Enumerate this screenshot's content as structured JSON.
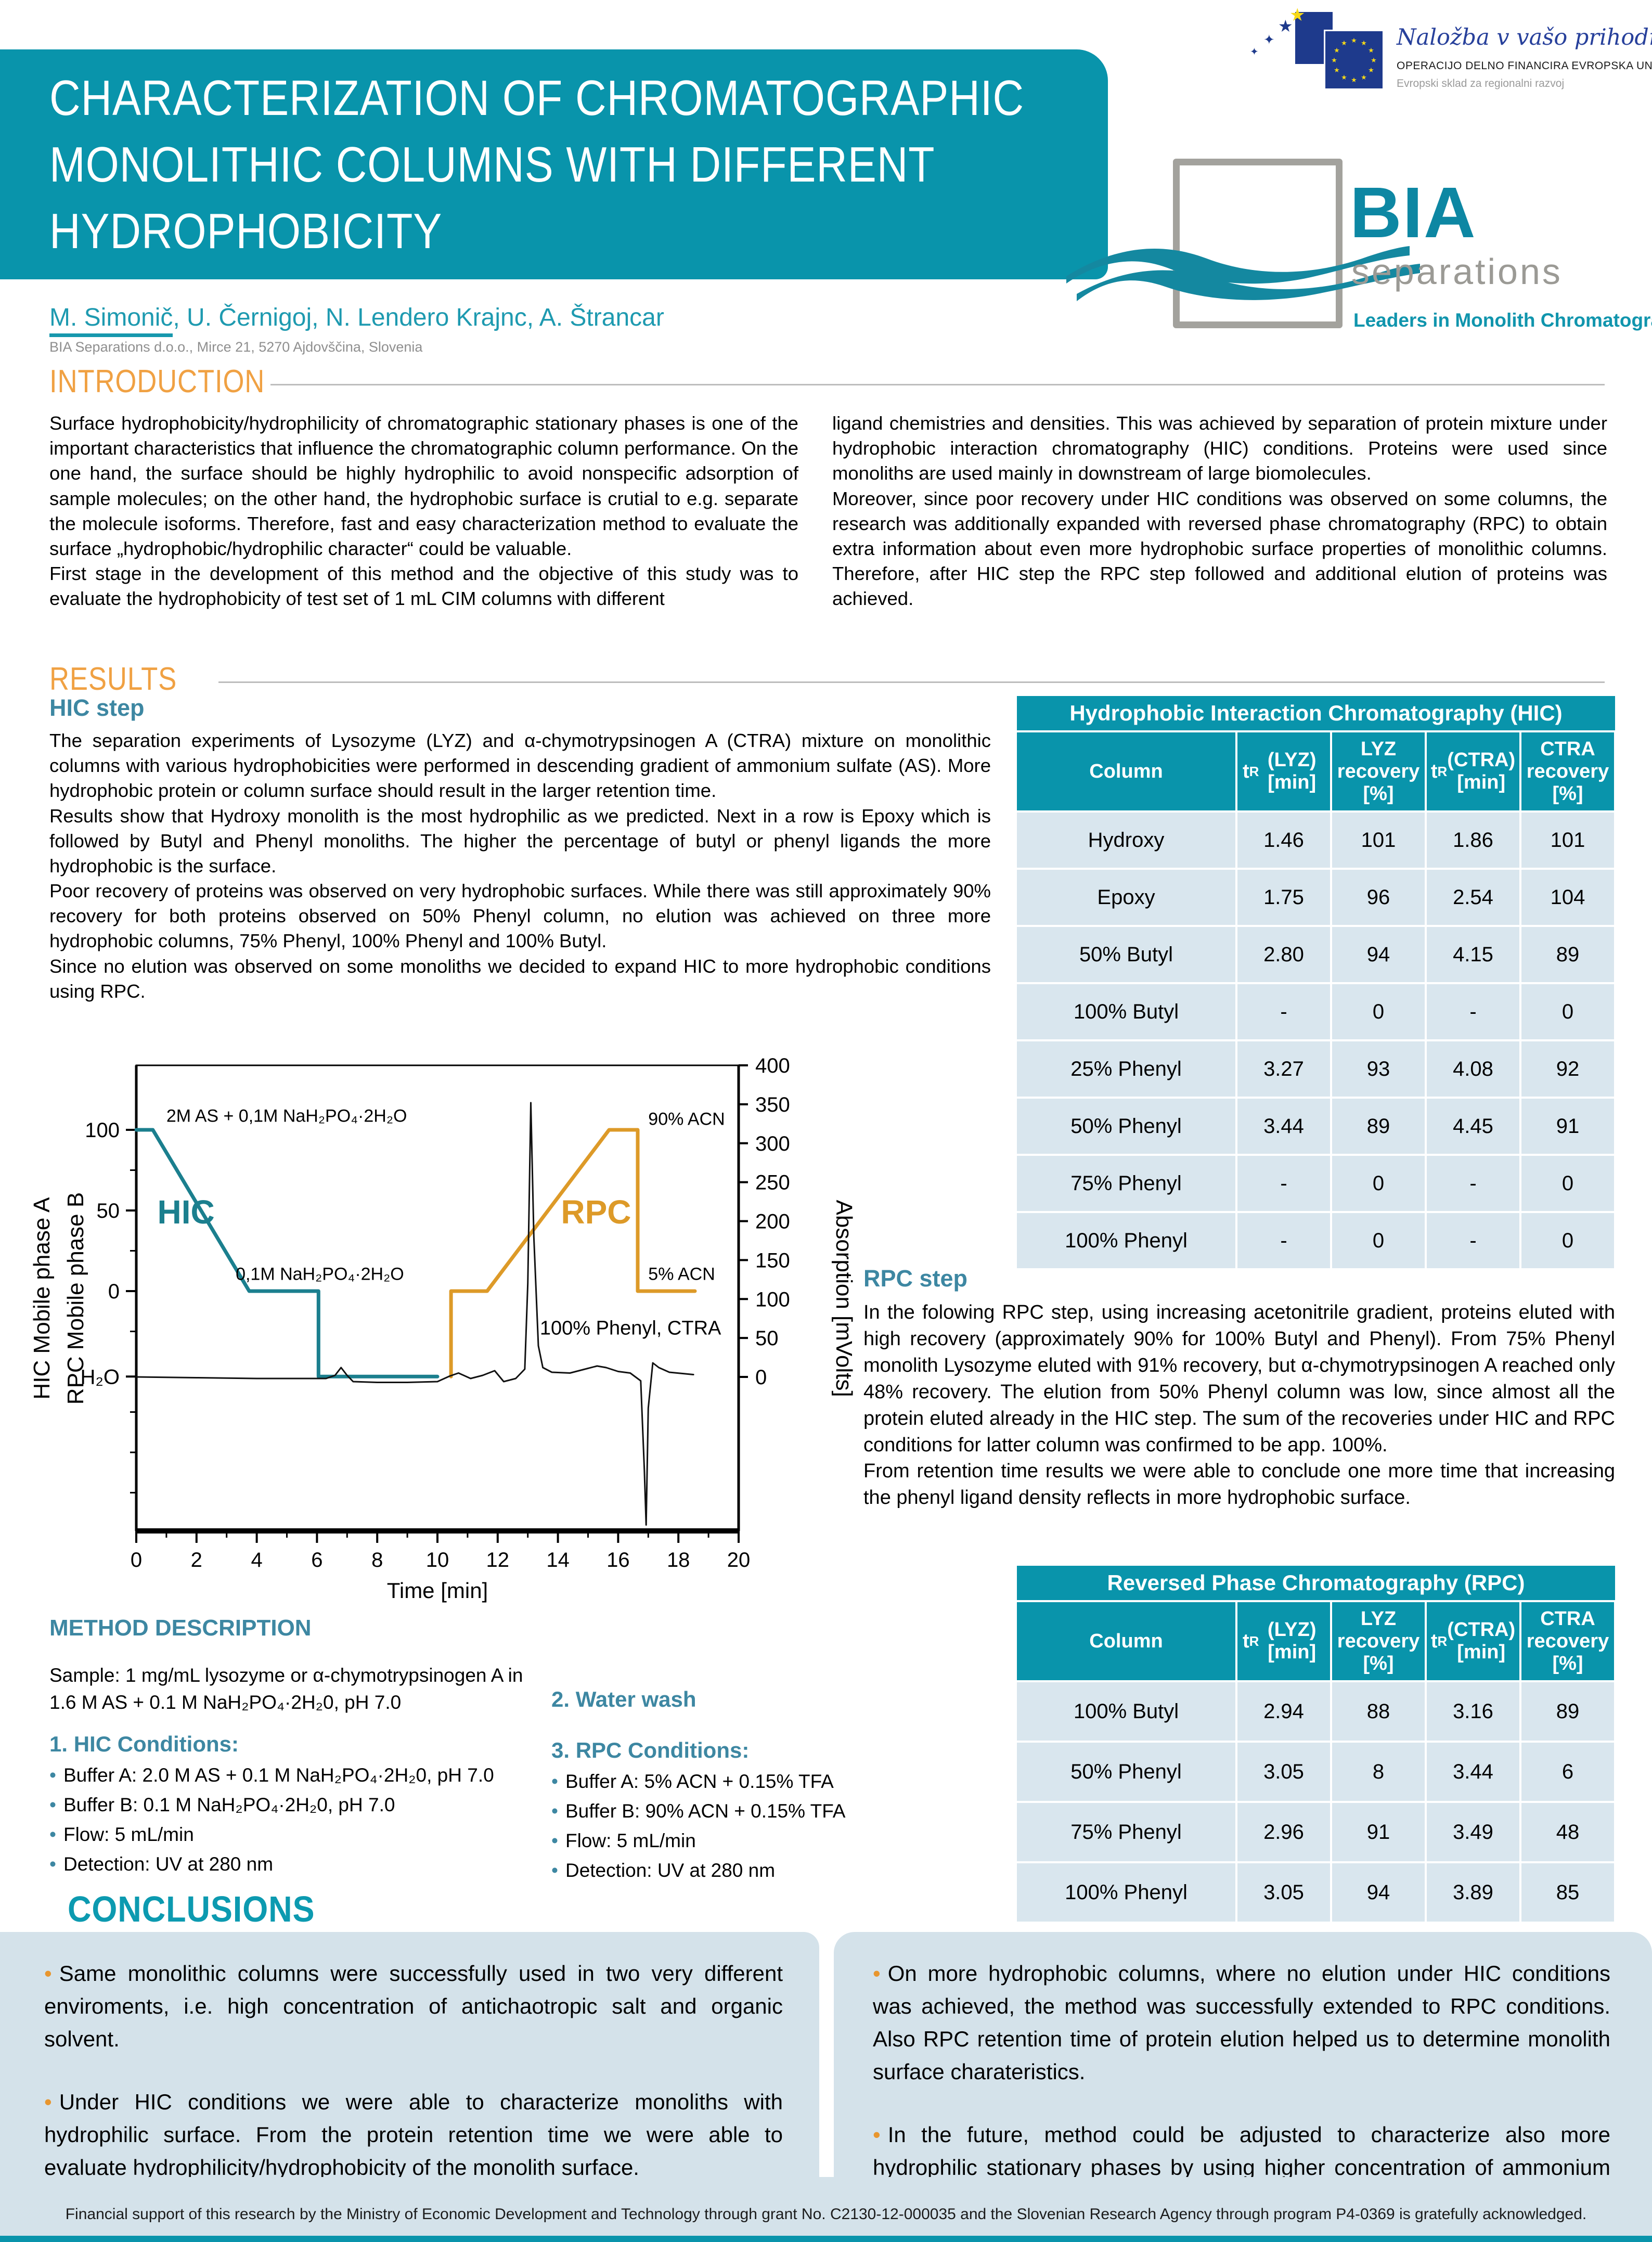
{
  "header": {
    "title_lines": [
      "CHARACTERIZATION OF CHROMATOGRAPHIC",
      "MONOLITHIC COLUMNS WITH DIFFERENT",
      "HYDROPHOBICITY"
    ],
    "author_first": "M. Simonič",
    "author_rest": ", U. Černigoj, N. Lendero Krajnc, A. Štrancar",
    "affiliation": "BIA Separations d.o.o., Mirce 21, 5270 Ajdovščina, Slovenia"
  },
  "logos": {
    "eu": {
      "line1": "Naložba v vašo prihodnost",
      "line2": "OPERACIJO DELNO FINANCIRA EVROPSKA UNIJA",
      "line3": "Evropski sklad za regionalni razvoj"
    },
    "bia": {
      "name": "BIA",
      "sub": "separations",
      "tagline": "Leaders in Monolith Chromatography"
    }
  },
  "intro": {
    "heading": "INTRODUCTION",
    "col1": [
      "Surface hydrophobicity/hydrophilicity of chromatographic stationary phases is one of the important characteristics that influence the chromatographic column performance. On the one hand, the surface should be highly hydrophilic to avoid nonspecific adsorption of sample molecules;  on the other hand, the hydrophobic surface is crutial to e.g. separate the molecule isoforms. Therefore, fast and easy characterization method to evaluate the surface „hydrophobic/hydrophilic character“ could be valuable.",
      "First stage in the development of this method and the objective of this study was to evaluate the hydrophobicity of test set of 1 mL CIM columns with different"
    ],
    "col2": [
      "ligand chemistries and densities. This was achieved by separation of protein mixture under hydrophobic interaction chromatography (HIC) conditions. Proteins were used since monoliths are used mainly in downstream of large biomolecules.",
      "Moreover, since poor recovery under HIC conditions was observed on some columns, the research was additionally expanded with reversed phase chromatography (RPC) to obtain extra information about even more hydrophobic surface properties of monolithic columns. Therefore, after HIC step the RPC step followed and additional elution of proteins was achieved."
    ]
  },
  "results": {
    "heading": "RESULTS",
    "hic_heading": "HIC step",
    "hic_paragraphs": [
      "The separation experiments of Lysozyme (LYZ) and α-chymotrypsinogen A (CTRA) mixture on monolithic columns with various hydrophobicities were performed in descending gradient of ammonium sulfate (AS).  More hydrophobic protein or column surface should result in the larger retention time.",
      "Results show that Hydroxy monolith is the most hydrophilic as we predicted.  Next in a row is Epoxy which is followed by Butyl and Phenyl monoliths. The higher the percentage of butyl or phenyl ligands the more hydrophobic is the surface.",
      "Poor recovery of proteins was observed on very hydrophobic surfaces. While there was still approximately 90% recovery for both proteins observed on 50% Phenyl column, no elution was achieved on three more hydrophobic columns, 75% Phenyl, 100% Phenyl and 100% Butyl.",
      "Since no elution was observed on some monoliths we decided to  expand HIC to more hydrophobic conditions using RPC."
    ],
    "rpc_heading": "RPC step",
    "rpc_paragraphs": [
      "In the folowing RPC step, using increasing acetonitrile gradient, proteins eluted with high recovery (approximately 90% for 100% Butyl and Phenyl). From 75% Phenyl monolith Lysozyme eluted with 91% recovery, but α-chymotrypsinogen A reached only 48% recovery. The elution from 50% Phenyl column was low, since almost all the protein eluted already in the HIC step. The sum of the recoveries under HIC and RPC conditions  for latter column was confirmed to be app. 100%.",
      "From retention time results we were able to conclude one more time that increasing the phenyl ligand density reflects in more hydrophobic surface."
    ]
  },
  "tables": {
    "headers": [
      {
        "label": "Column"
      },
      {
        "pre": "t",
        "sub": "R",
        "post": " (LYZ) [min]"
      },
      {
        "label": "LYZ recovery [%]"
      },
      {
        "pre": "t",
        "sub": "R",
        "post": " (CTRA) [min]"
      },
      {
        "label": "CTRA recovery [%]"
      }
    ],
    "hic": {
      "title": "Hydrophobic Interaction Chromatography (HIC)",
      "rows": [
        [
          "Hydroxy",
          "1.46",
          "101",
          "1.86",
          "101"
        ],
        [
          "Epoxy",
          "1.75",
          "96",
          "2.54",
          "104"
        ],
        [
          "50% Butyl",
          "2.80",
          "94",
          "4.15",
          "89"
        ],
        [
          "100% Butyl",
          "-",
          "0",
          "-",
          "0"
        ],
        [
          "25% Phenyl",
          "3.27",
          "93",
          "4.08",
          "92"
        ],
        [
          "50% Phenyl",
          "3.44",
          "89",
          "4.45",
          "91"
        ],
        [
          "75% Phenyl",
          "-",
          "0",
          "-",
          "0"
        ],
        [
          "100% Phenyl",
          "-",
          "0",
          "-",
          "0"
        ]
      ]
    },
    "rpc": {
      "title": "Reversed Phase Chromatography (RPC)",
      "rows": [
        [
          "100% Butyl",
          "2.94",
          "88",
          "3.16",
          "89"
        ],
        [
          "50% Phenyl",
          "3.05",
          "8",
          "3.44",
          "6"
        ],
        [
          "75% Phenyl",
          "2.96",
          "91",
          "3.49",
          "48"
        ],
        [
          "100% Phenyl",
          "3.05",
          "94",
          "3.89",
          "85"
        ]
      ]
    }
  },
  "method": {
    "heading": "METHOD DESCRIPTION",
    "sample": "Sample: 1 mg/mL lysozyme or α-chymotrypsinogen A in 1.6 M AS + 0.1 M NaH₂PO₄·2H₂0, pH 7.0",
    "hic_title": "1. HIC Conditions:",
    "hic_bullets": [
      "Buffer A: 2.0 M AS + 0.1 M NaH₂PO₄·2H₂0, pH 7.0",
      "Buffer B: 0.1 M NaH₂PO₄·2H₂0, pH 7.0",
      "Flow: 5 mL/min",
      "Detection: UV at 280 nm"
    ],
    "water_title": "2. Water wash",
    "rpc_title": "3. RPC Conditions:",
    "rpc_bullets": [
      "Buffer A: 5% ACN + 0.15% TFA",
      "Buffer B: 90% ACN + 0.15% TFA",
      "Flow: 5 mL/min",
      "Detection: UV at 280 nm"
    ]
  },
  "conclusions": {
    "heading": "CONCLUSIONS",
    "left": [
      "Same monolithic columns were successfully used in two very different enviroments, i.e. high concentration of antichaotropic salt and organic solvent.",
      "Under HIC conditions we were able to characterize monoliths with hydrophilic surface. From the protein retention time we were able to evaluate hydrophilicity/hydrophobicity of the monolith surface."
    ],
    "right": [
      "On more hydrophobic columns, where no elution under HIC conditions was achieved, the method was successfully extended to RPC conditions. Also RPC retention time of protein elution helped us to determine monolith surface charateristics.",
      "In the future, method could be adjusted to characterize also more hydrophilic stationary phases by using higher concentration of ammonium sulphate at the beginning of the HIC gradient."
    ]
  },
  "footer": "Financial support of this research by the Ministry of Economic Development and Technology through grant No. C2130-12-000035 and  the Slovenian Research Agency through program P4-0369 is gratefully acknowledged.",
  "chart_data": {
    "type": "line",
    "xlabel": "Time [min]",
    "x_range": [
      0,
      20
    ],
    "x_tick_step": 2,
    "left_axis": {
      "title_lines": [
        "HIC Mobile phase A",
        "RPC Mobile phase B"
      ],
      "ticks": [
        {
          "label": "100",
          "value": 100
        },
        {
          "label": "50",
          "value": 50
        },
        {
          "label": "0",
          "value": 0
        },
        {
          "label": "H₂O",
          "value": -53
        }
      ],
      "minor_ticks": [
        75,
        25,
        -25,
        -75,
        -100,
        -125
      ]
    },
    "right_axis": {
      "title": "Absorption [mVolts]",
      "min": 0,
      "max": 400,
      "step": 50
    },
    "series": [
      {
        "name": "HIC gradient",
        "axis": "left",
        "color": "#1b7f8e",
        "width": 7,
        "points": [
          [
            0,
            100
          ],
          [
            0.55,
            100
          ],
          [
            3.75,
            0
          ],
          [
            6.05,
            0
          ],
          [
            6.05,
            -53
          ],
          [
            10,
            -53
          ]
        ]
      },
      {
        "name": "RPC gradient",
        "axis": "left",
        "color": "#dd9a28",
        "width": 7,
        "points": [
          [
            10.45,
            -53
          ],
          [
            10.45,
            0
          ],
          [
            11.65,
            0
          ],
          [
            15.7,
            100
          ],
          [
            16.65,
            100
          ],
          [
            16.65,
            0
          ],
          [
            18.55,
            0
          ]
        ]
      },
      {
        "name": "UV absorption",
        "axis": "right",
        "color": "#111111",
        "width": 3,
        "points": [
          [
            0,
            0
          ],
          [
            2,
            -1
          ],
          [
            4,
            -2
          ],
          [
            6.3,
            -2
          ],
          [
            6.6,
            2
          ],
          [
            6.8,
            12
          ],
          [
            7.0,
            2
          ],
          [
            7.2,
            -6
          ],
          [
            8,
            -7
          ],
          [
            9,
            -7
          ],
          [
            10,
            -6
          ],
          [
            10.4,
            1
          ],
          [
            10.7,
            5
          ],
          [
            11.1,
            -2
          ],
          [
            11.5,
            2
          ],
          [
            11.9,
            8
          ],
          [
            12.2,
            -6
          ],
          [
            12.6,
            -2
          ],
          [
            12.9,
            10
          ],
          [
            13.0,
            120
          ],
          [
            13.1,
            352
          ],
          [
            13.2,
            180
          ],
          [
            13.35,
            40
          ],
          [
            13.5,
            12
          ],
          [
            13.8,
            6
          ],
          [
            14.4,
            5
          ],
          [
            14.9,
            10
          ],
          [
            15.3,
            14
          ],
          [
            15.6,
            12
          ],
          [
            16.0,
            7
          ],
          [
            16.4,
            5
          ],
          [
            16.75,
            -5
          ],
          [
            16.87,
            -120
          ],
          [
            16.93,
            -190
          ],
          [
            17.0,
            -40
          ],
          [
            17.15,
            18
          ],
          [
            17.35,
            12
          ],
          [
            17.7,
            6
          ],
          [
            18.5,
            3
          ]
        ]
      }
    ],
    "annotations": [
      {
        "text": "2M AS + 0,1M NaH₂PO₄·2H₂O",
        "t": 1.0,
        "u": 105,
        "style": "label"
      },
      {
        "text": "90% ACN",
        "t": 17.0,
        "u": 103,
        "style": "label"
      },
      {
        "text": "0,1M NaH₂PO₄·2H₂O",
        "t": 3.3,
        "u": 7,
        "style": "label"
      },
      {
        "text": "5% ACN",
        "t": 17.0,
        "u": 7,
        "style": "label"
      },
      {
        "text": "HIC",
        "t": 0.7,
        "u": 42,
        "style": "phase-hic"
      },
      {
        "text": "RPC",
        "t": 14.1,
        "u": 42,
        "style": "phase-rpc"
      },
      {
        "text": "100% Phenyl, CTRA",
        "t": 13.4,
        "u": -27,
        "style": "peak-label"
      }
    ]
  }
}
